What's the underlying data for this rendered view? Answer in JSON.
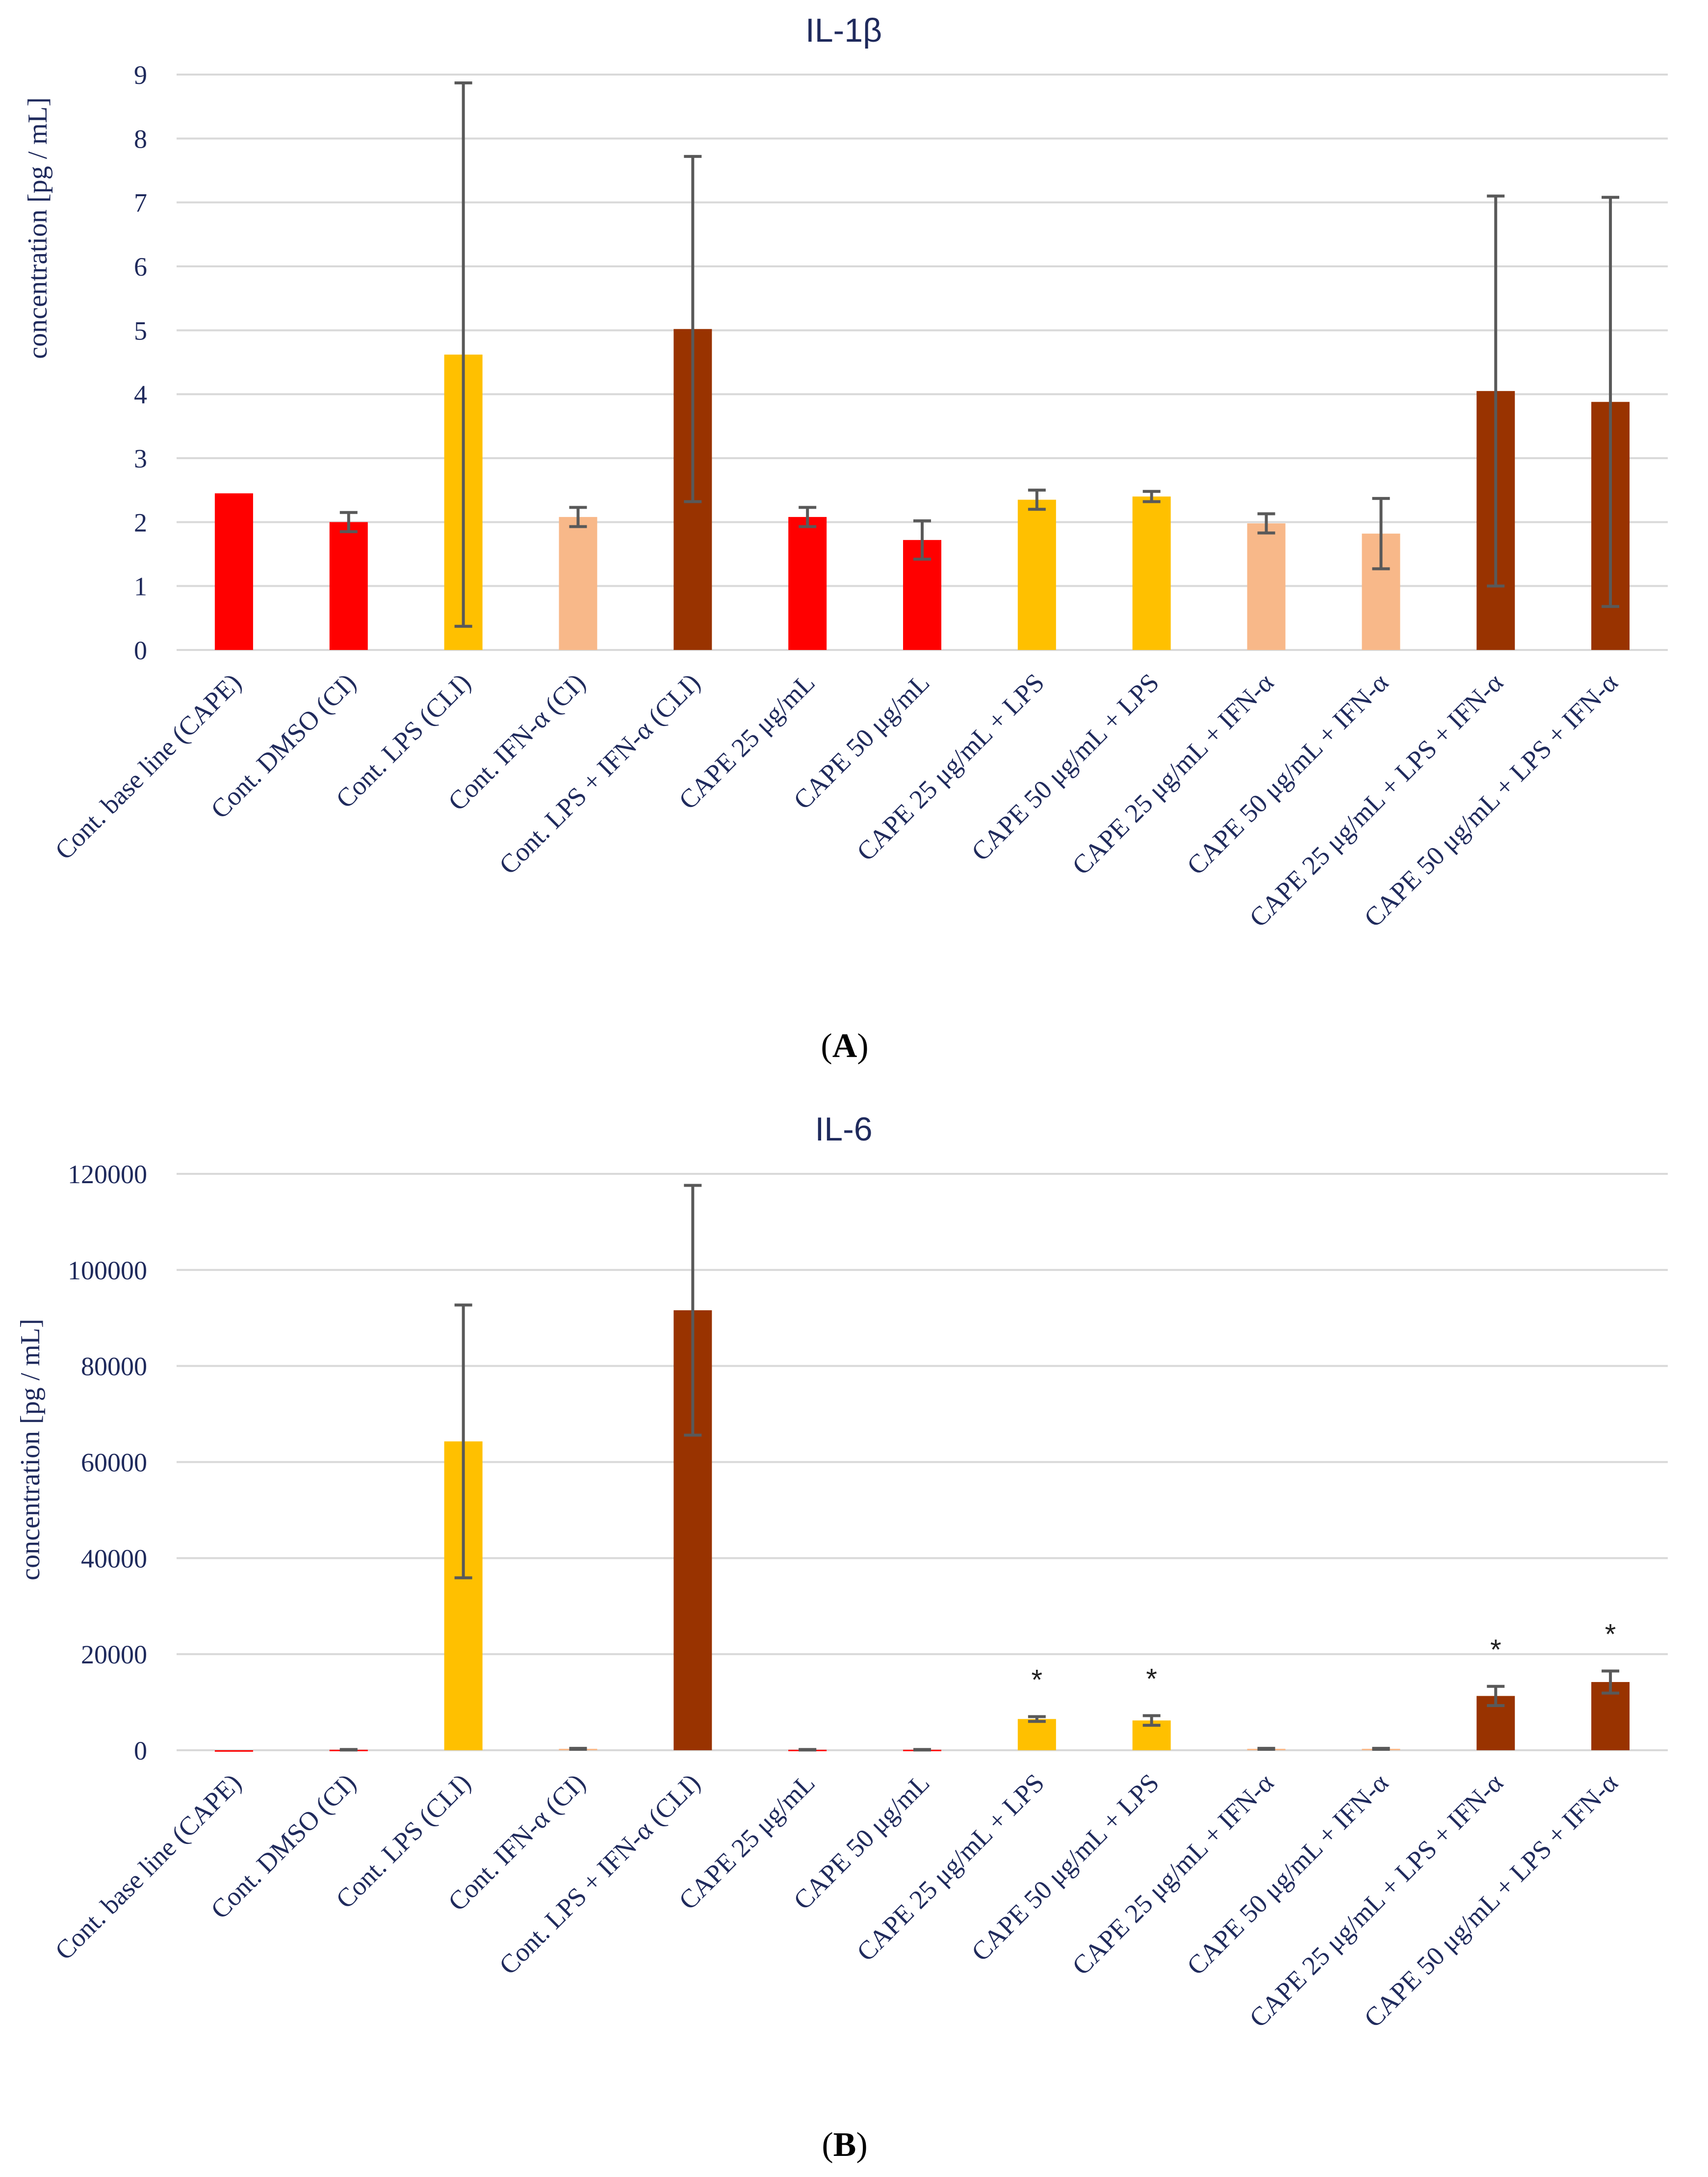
{
  "chart_data": [
    {
      "type": "bar",
      "panel": "A",
      "title": "IL-1β",
      "ylabel": "concentration [pg / mL]",
      "xlabel": "",
      "ylim": [
        0,
        9
      ],
      "yticks": [
        "0",
        "1",
        "2",
        "3",
        "4",
        "5",
        "6",
        "7",
        "8",
        "9"
      ],
      "grid": true,
      "categories": [
        "Cont. base line (CAPE)",
        "Cont. DMSO (CI)",
        "Cont. LPS (CLI)",
        "Cont. IFN-α (CI)",
        "Cont. LPS + IFN-α (CLI)",
        "CAPE 25 μg/mL",
        "CAPE 50 μg/mL",
        "CAPE 25 μg/mL + LPS",
        "CAPE 50 μg/mL + LPS",
        "CAPE 25 μg/mL + IFN-α",
        "CAPE 50 μg/mL + IFN-α",
        "CAPE 25 μg/mL + LPS + IFN-α",
        "CAPE 50 μg/mL + LPS + IFN-α"
      ],
      "values": [
        2.45,
        2.0,
        4.62,
        2.08,
        5.02,
        2.08,
        1.72,
        2.35,
        2.4,
        1.98,
        1.82,
        4.05,
        3.88
      ],
      "errors": [
        0,
        0.15,
        4.25,
        0.15,
        2.7,
        0.15,
        0.3,
        0.15,
        0.08,
        0.15,
        0.55,
        3.05,
        3.2
      ],
      "significance": [
        "",
        "",
        "",
        "",
        "",
        "",
        "",
        "",
        "",
        "",
        "",
        "",
        ""
      ],
      "colors": [
        "#ff0000",
        "#ff0000",
        "#ffc000",
        "#f8b889",
        "#993300",
        "#ff0000",
        "#ff0000",
        "#ffc000",
        "#ffc000",
        "#f8b889",
        "#f8b889",
        "#993300",
        "#993300"
      ]
    },
    {
      "type": "bar",
      "panel": "B",
      "title": "IL-6",
      "ylabel": "concentration [pg / mL]",
      "xlabel": "",
      "ylim": [
        0,
        120000
      ],
      "yticks": [
        "0",
        "20000",
        "40000",
        "60000",
        "80000",
        "100000",
        "120000"
      ],
      "grid": true,
      "categories": [
        "Cont. base line (CAPE)",
        "Cont. DMSO (CI)",
        "Cont. LPS (CLI)",
        "Cont. IFN-α (CI)",
        "Cont. LPS + IFN-α (CLI)",
        "CAPE 25 μg/mL",
        "CAPE 50 μg/mL",
        "CAPE 25 μg/mL + LPS",
        "CAPE 50 μg/mL + LPS",
        "CAPE 25 μg/mL + IFN-α",
        "CAPE 50 μg/mL + IFN-α",
        "CAPE 25 μg/mL + LPS + IFN-α",
        "CAPE 50 μg/mL + LPS + IFN-α"
      ],
      "values": [
        0,
        100,
        64300,
        300,
        91600,
        100,
        100,
        6500,
        6200,
        300,
        300,
        11300,
        14200
      ],
      "errors": [
        0,
        50,
        28400,
        100,
        26000,
        50,
        50,
        500,
        1000,
        100,
        100,
        2000,
        2300
      ],
      "significance": [
        "",
        "",
        "",
        "",
        "",
        "",
        "",
        "*",
        "*",
        "",
        "",
        "*",
        "*"
      ],
      "colors": [
        "#ff0000",
        "#ff0000",
        "#ffc000",
        "#f8b889",
        "#993300",
        "#ff0000",
        "#ff0000",
        "#ffc000",
        "#ffc000",
        "#f8b889",
        "#f8b889",
        "#993300",
        "#993300"
      ]
    }
  ]
}
